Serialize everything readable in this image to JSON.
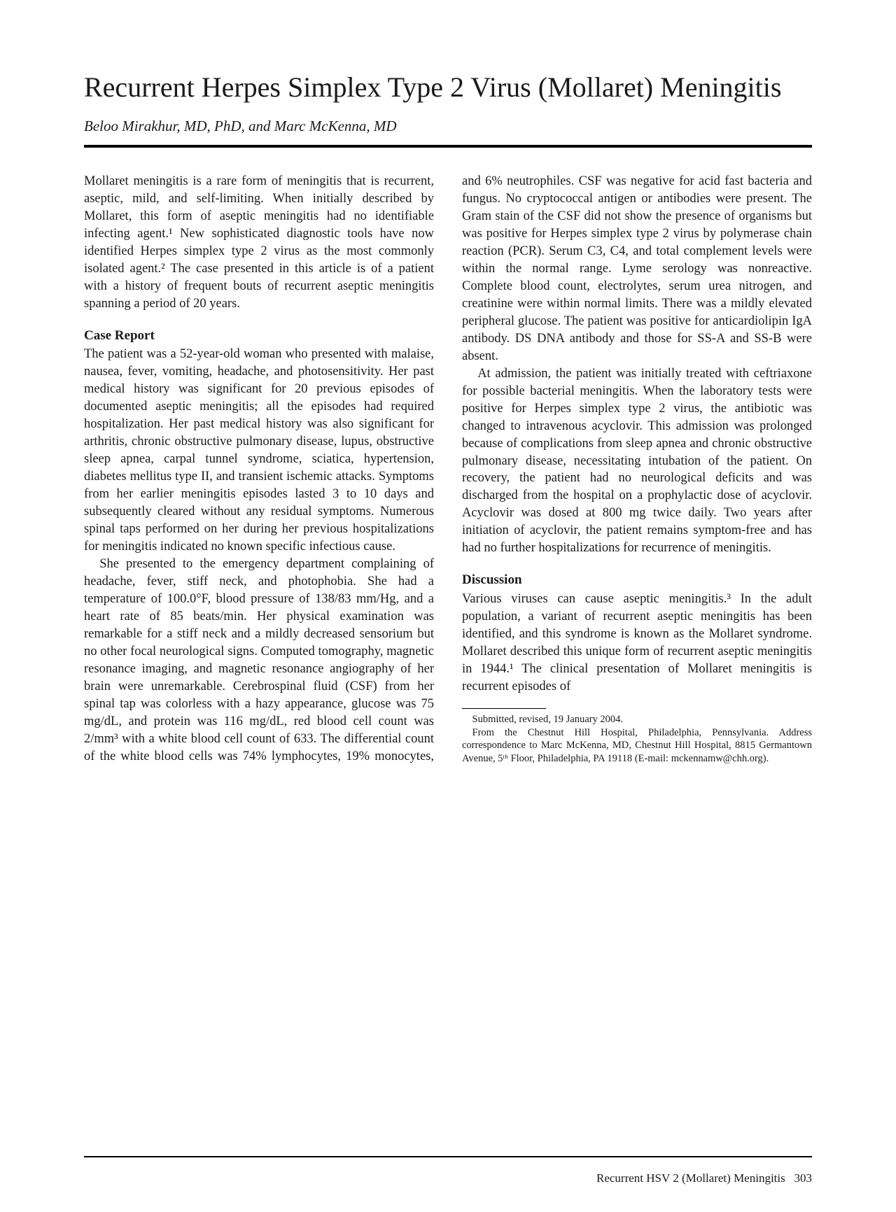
{
  "title": "Recurrent Herpes Simplex Type 2 Virus (Mollaret) Meningitis",
  "authors": "Beloo Mirakhur, MD, PhD, and Marc McKenna, MD",
  "intro": "Mollaret meningitis is a rare form of meningitis that is recurrent, aseptic, mild, and self-limiting. When initially described by Mollaret, this form of aseptic meningitis had no identifiable infecting agent.¹ New sophisticated diagnostic tools have now identified Herpes simplex type 2 virus as the most commonly isolated agent.² The case presented in this article is of a patient with a history of frequent bouts of recurrent aseptic meningitis spanning a period of 20 years.",
  "heading_case": "Case Report",
  "case_p1": "The patient was a 52-year-old woman who presented with malaise, nausea, fever, vomiting, headache, and photosensitivity. Her past medical history was significant for 20 previous episodes of documented aseptic meningitis; all the episodes had required hospitalization. Her past medical history was also significant for arthritis, chronic obstructive pulmonary disease, lupus, obstructive sleep apnea, carpal tunnel syndrome, sciatica, hypertension, diabetes mellitus type II, and transient ischemic attacks. Symptoms from her earlier meningitis episodes lasted 3 to 10 days and subsequently cleared without any residual symptoms. Numerous spinal taps performed on her during her previous hospitalizations for meningitis indicated no known specific infectious cause.",
  "case_p2": "She presented to the emergency department complaining of headache, fever, stiff neck, and photophobia. She had a temperature of 100.0°F, blood pressure of 138/83 mm/Hg, and a heart rate of 85 beats/min. Her physical examination was remarkable for a stiff neck and a mildly decreased sensorium but no other focal neurological signs. Computed tomography, magnetic resonance imaging, and magnetic resonance angiography of her brain were unremarkable. Cerebrospinal fluid (CSF) from her spinal tap was colorless with a hazy appearance, glucose was 75 mg/dL, and protein was 116 mg/dL, red blood cell count was 2/mm³ with a white blood cell count of 633. The differential count of the white blood cells was 74% lymphocytes, 19% monocytes, and 6% neutrophiles. CSF was negative for acid fast bacteria and fungus. No cryptococcal antigen or antibodies were present. The Gram stain of the CSF did not show the presence of organisms but was positive for Herpes simplex type 2 virus by polymerase chain reaction (PCR). Serum C3, C4, and total complement levels were within the normal range. Lyme serology was nonreactive. Complete blood count, electrolytes, serum urea nitrogen, and creatinine were within normal limits. There was a mildly elevated peripheral glucose. The patient was positive for anticardiolipin IgA antibody. DS DNA antibody and those for SS-A and SS-B were absent.",
  "case_p3": "At admission, the patient was initially treated with ceftriaxone for possible bacterial meningitis. When the laboratory tests were positive for Herpes simplex type 2 virus, the antibiotic was changed to intravenous acyclovir. This admission was prolonged because of complications from sleep apnea and chronic obstructive pulmonary disease, necessitating intubation of the patient. On recovery, the patient had no neurological deficits and was discharged from the hospital on a prophylactic dose of acyclovir. Acyclovir was dosed at 800 mg twice daily. Two years after initiation of acyclovir, the patient remains symptom-free and has had no further hospitalizations for recurrence of meningitis.",
  "heading_discussion": "Discussion",
  "discussion_p1": "Various viruses can cause aseptic meningitis.³ In the adult population, a variant of recurrent aseptic meningitis has been identified, and this syndrome is known as the Mollaret syndrome. Mollaret described this unique form of recurrent aseptic meningitis in 1944.¹ The clinical presentation of Mollaret meningitis is recurrent episodes of",
  "footnote_l1": "Submitted, revised, 19 January 2004.",
  "footnote_l2": "From the Chestnut Hill Hospital, Philadelphia, Pennsylvania. Address correspondence to Marc McKenna, MD, Chestnut Hill Hospital, 8815 Germantown Avenue, 5ᵗʰ Floor, Philadelphia, PA 19118 (E-mail: mckennamw@chh.org).",
  "footer_running": "Recurrent HSV 2 (Mollaret) Meningitis",
  "footer_page": "303"
}
